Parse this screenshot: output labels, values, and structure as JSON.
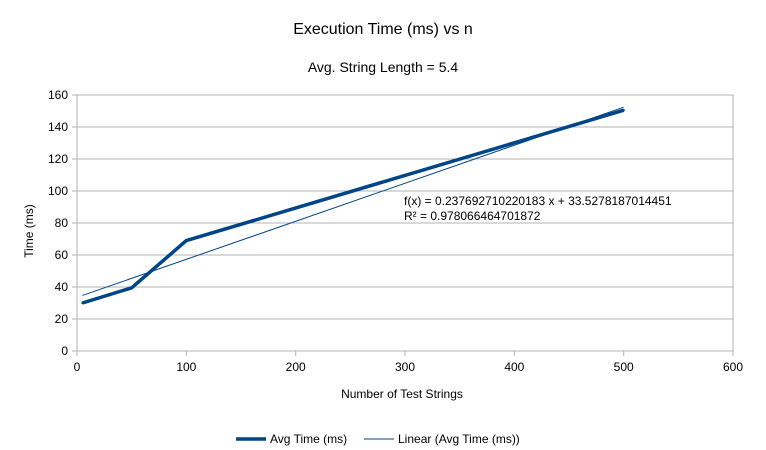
{
  "chart_data": {
    "type": "line",
    "title": "Execution Time (ms) vs n",
    "subtitle": "Avg. String Length = 5.4",
    "xlabel": "Number of Test Strings",
    "ylabel": "Time (ms)",
    "xlim": [
      0,
      600
    ],
    "ylim": [
      0,
      160
    ],
    "xticks": [
      0,
      100,
      200,
      300,
      400,
      500,
      600
    ],
    "yticks": [
      0,
      20,
      40,
      60,
      80,
      100,
      120,
      140,
      160
    ],
    "grid": true,
    "legend_position": "bottom",
    "series": [
      {
        "name": "Avg Time (ms)",
        "color": "#004586",
        "x": [
          5,
          50,
          100,
          500
        ],
        "y": [
          30,
          39.5,
          69,
          150.5
        ]
      }
    ],
    "trendline": {
      "name": "Linear (Avg Time (ms))",
      "color": "#004586",
      "slope": 0.237692710220183,
      "intercept": 33.5278187014451,
      "x_range": [
        5,
        500
      ],
      "equation_text": "f(x) = 0.237692710220183 x + 33.5278187014451",
      "r2_text": "R² = 0.978066464701872"
    }
  }
}
